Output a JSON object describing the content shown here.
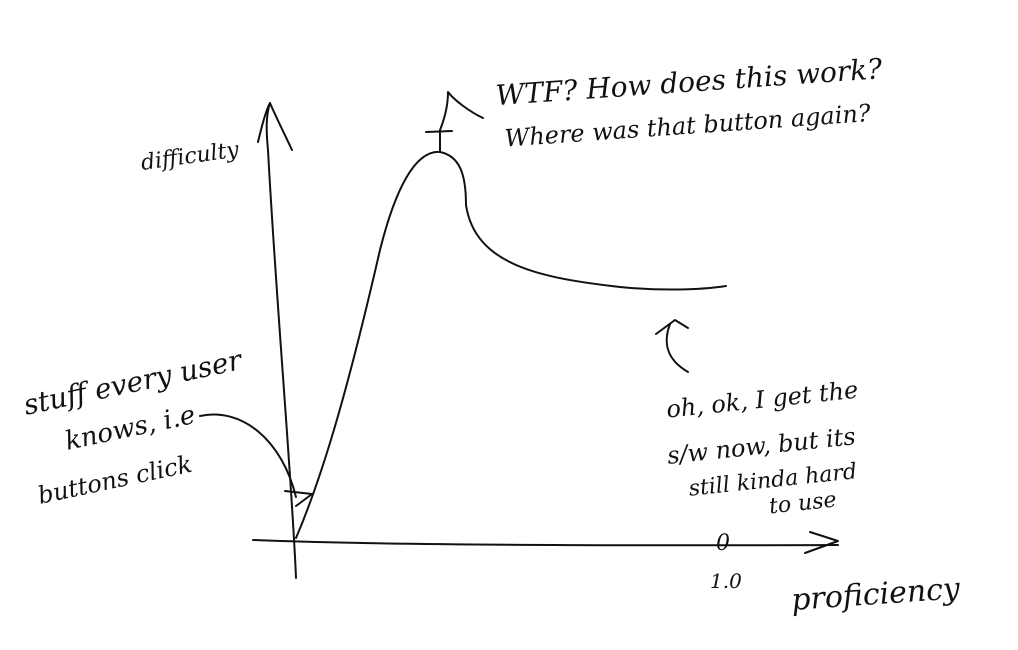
{
  "axes": {
    "y_label": "difficulty",
    "x_label": "proficiency",
    "x_tick_label": "1.0",
    "x_tick_mark": "0"
  },
  "annotations": {
    "peak": {
      "lines": [
        "WTF? How does this work?",
        "Where was that button again?"
      ]
    },
    "start": {
      "lines": [
        "stuff every user",
        "knows, i.e",
        "buttons click"
      ]
    },
    "plateau": {
      "lines": [
        "oh, ok, I get the",
        "s/w now, but its",
        "still kinda hard",
        "to use"
      ]
    }
  },
  "colors": {
    "ink": "#111111",
    "background": "#ffffff"
  }
}
